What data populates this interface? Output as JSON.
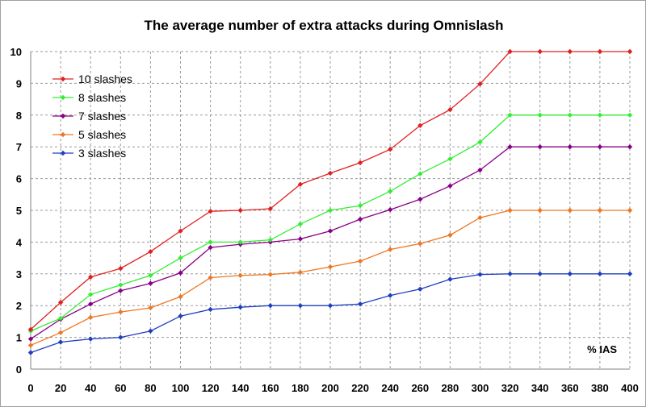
{
  "chart_data": {
    "type": "line",
    "title": "The average number of extra attacks during Omnislash",
    "xlabel": "% IAS",
    "ylabel": "",
    "x": [
      0,
      20,
      40,
      60,
      80,
      100,
      120,
      140,
      160,
      180,
      200,
      220,
      240,
      260,
      280,
      300,
      320,
      340,
      360,
      380,
      400
    ],
    "xlim": [
      0,
      400
    ],
    "ylim": [
      0,
      10
    ],
    "x_ticks": [
      "0",
      "20",
      "40",
      "60",
      "80",
      "100",
      "120",
      "140",
      "160",
      "180",
      "200",
      "220",
      "240",
      "260",
      "280",
      "300",
      "320",
      "340",
      "360",
      "380",
      "400"
    ],
    "y_ticks": [
      "0",
      "1",
      "2",
      "3",
      "4",
      "5",
      "6",
      "7",
      "8",
      "9",
      "10"
    ],
    "grid": true,
    "legend_position": "top-left",
    "series": [
      {
        "name": "10 slashes",
        "color": "#e02020",
        "values": [
          1.25,
          2.1,
          2.9,
          3.17,
          3.7,
          4.35,
          4.97,
          5.0,
          5.05,
          5.82,
          6.17,
          6.5,
          6.92,
          7.67,
          8.17,
          8.98,
          10.0,
          10.0,
          10.0,
          10.0,
          10.0
        ]
      },
      {
        "name": "8 slashes",
        "color": "#33ee33",
        "values": [
          1.2,
          1.6,
          2.35,
          2.65,
          2.95,
          3.5,
          4.0,
          4.0,
          4.07,
          4.57,
          5.0,
          5.15,
          5.6,
          6.15,
          6.62,
          7.15,
          8.0,
          8.0,
          8.0,
          8.0,
          8.0
        ]
      },
      {
        "name": "7 slashes",
        "color": "#880088",
        "values": [
          0.95,
          1.57,
          2.05,
          2.47,
          2.7,
          3.03,
          3.83,
          3.93,
          4.0,
          4.1,
          4.35,
          4.72,
          5.02,
          5.35,
          5.77,
          6.27,
          7.0,
          7.0,
          7.0,
          7.0,
          7.0
        ]
      },
      {
        "name": "5 slashes",
        "color": "#ee7722",
        "values": [
          0.75,
          1.15,
          1.63,
          1.8,
          1.93,
          2.28,
          2.88,
          2.95,
          2.98,
          3.05,
          3.22,
          3.4,
          3.77,
          3.95,
          4.22,
          4.77,
          5.0,
          5.0,
          5.0,
          5.0,
          5.0
        ]
      },
      {
        "name": "3 slashes",
        "color": "#1f3fbf",
        "values": [
          0.52,
          0.85,
          0.95,
          1.0,
          1.2,
          1.67,
          1.88,
          1.95,
          2.0,
          2.0,
          2.0,
          2.05,
          2.32,
          2.52,
          2.83,
          2.98,
          3.0,
          3.0,
          3.0,
          3.0,
          3.0
        ]
      }
    ]
  }
}
